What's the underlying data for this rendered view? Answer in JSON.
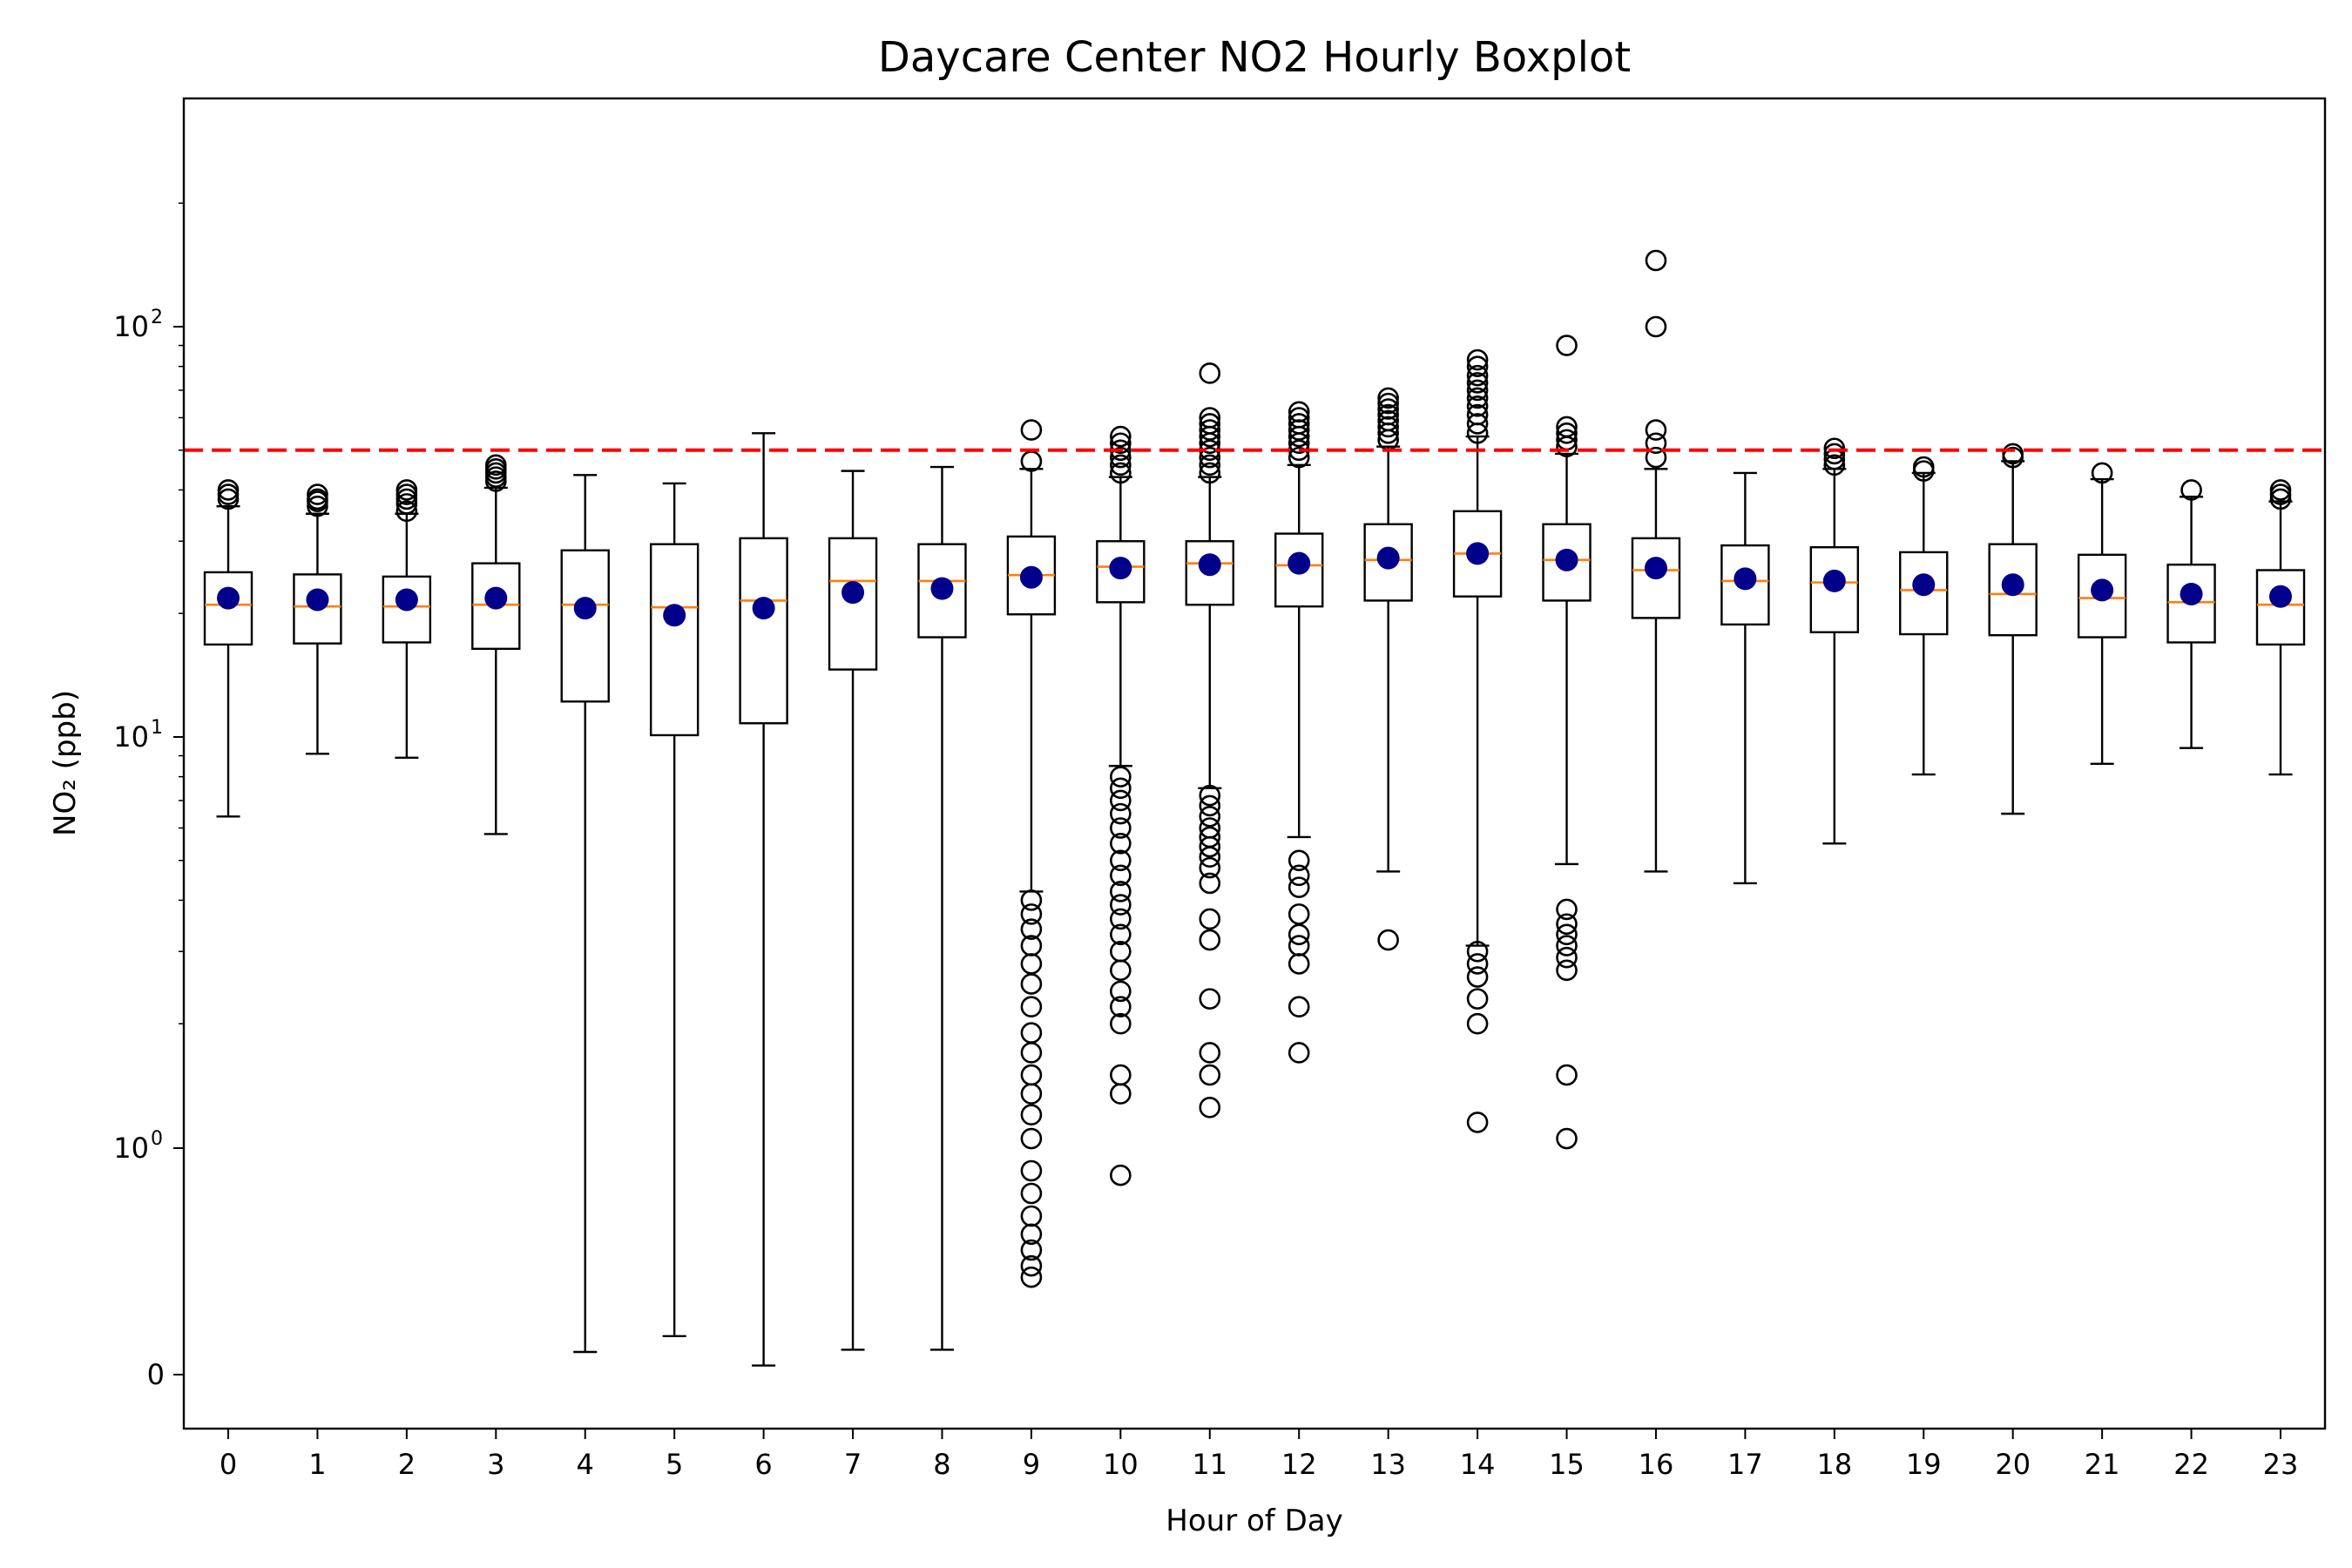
{
  "chart_data": {
    "type": "boxplot",
    "title": "Daycare Center NO2 Hourly Boxplot",
    "xlabel": "Hour of Day",
    "ylabel": "NO₂ (ppb)",
    "yscale": "symlog",
    "ylim": [
      -0.25,
      200
    ],
    "y_ticks": [
      {
        "value": 0,
        "label": "0"
      },
      {
        "value": 1,
        "label": "10",
        "exp": "0"
      },
      {
        "value": 10,
        "label": "10",
        "exp": "1"
      },
      {
        "value": 100,
        "label": "10",
        "exp": "2"
      }
    ],
    "reference_line": {
      "value": 50,
      "color": "#ff0000",
      "style": "dashed"
    },
    "colors": {
      "median": "#ff7f0e",
      "mean": "#00008b",
      "box": "#000000",
      "outlier": "#000000"
    },
    "categories": [
      "0",
      "1",
      "2",
      "3",
      "4",
      "5",
      "6",
      "7",
      "8",
      "9",
      "10",
      "11",
      "12",
      "13",
      "14",
      "15",
      "16",
      "17",
      "18",
      "19",
      "20",
      "21",
      "22",
      "23"
    ],
    "boxes": [
      {
        "hour": 0,
        "whislo": 6.4,
        "q1": 16.8,
        "median": 21.0,
        "q3": 25.2,
        "whishi": 36.5,
        "mean": 21.8,
        "fliers": [
          38,
          39,
          40
        ]
      },
      {
        "hour": 1,
        "whislo": 9.1,
        "q1": 16.9,
        "median": 20.8,
        "q3": 24.9,
        "whishi": 35.0,
        "mean": 21.6,
        "fliers": [
          36.5,
          37.5,
          38,
          39
        ]
      },
      {
        "hour": 2,
        "whislo": 8.9,
        "q1": 17.0,
        "median": 20.8,
        "q3": 24.6,
        "whishi": 35.0,
        "mean": 21.6,
        "fliers": [
          35.5,
          37,
          38,
          39,
          40
        ]
      },
      {
        "hour": 3,
        "whislo": 5.8,
        "q1": 16.4,
        "median": 21.0,
        "q3": 26.5,
        "whishi": 40.5,
        "mean": 21.8,
        "fliers": [
          42,
          43,
          44,
          45,
          46
        ]
      },
      {
        "hour": 4,
        "whislo": 0.1,
        "q1": 12.2,
        "median": 21.0,
        "q3": 28.5,
        "whishi": 43.5,
        "mean": 20.6
      },
      {
        "hour": 5,
        "whislo": 0.17,
        "q1": 10.1,
        "median": 20.7,
        "q3": 29.5,
        "whishi": 41.5,
        "mean": 19.8
      },
      {
        "hour": 6,
        "whislo": 0.04,
        "q1": 10.8,
        "median": 21.5,
        "q3": 30.5,
        "whishi": 55.0,
        "mean": 20.6
      },
      {
        "hour": 7,
        "whislo": 0.11,
        "q1": 14.6,
        "median": 24.0,
        "q3": 30.5,
        "whishi": 44.5,
        "mean": 22.5
      },
      {
        "hour": 8,
        "whislo": 0.11,
        "q1": 17.5,
        "median": 24.0,
        "q3": 29.5,
        "whishi": 45.5,
        "mean": 23.0
      },
      {
        "hour": 9,
        "whislo": 4.2,
        "q1": 19.9,
        "median": 24.8,
        "q3": 30.8,
        "whishi": 45.0,
        "mean": 24.5,
        "fliers": [
          47,
          56,
          4.0,
          3.7,
          3.4,
          3.1,
          2.8,
          2.5,
          2.2,
          1.9,
          1.7,
          1.5,
          1.35,
          1.2,
          1.05,
          0.9,
          0.8,
          0.7,
          0.62,
          0.55,
          0.48,
          0.43
        ]
      },
      {
        "hour": 10,
        "whislo": 8.5,
        "q1": 21.3,
        "median": 26.0,
        "q3": 30.0,
        "whishi": 43.0,
        "mean": 25.8,
        "fliers": [
          44,
          46,
          48,
          50,
          52,
          54,
          8.0,
          7.5,
          7.0,
          6.5,
          6.0,
          5.5,
          5.0,
          4.6,
          4.2,
          3.9,
          3.6,
          3.3,
          3.0,
          2.7,
          2.4,
          2.2,
          2.0,
          1.5,
          1.35,
          0.88
        ]
      },
      {
        "hour": 11,
        "whislo": 7.5,
        "q1": 21.0,
        "median": 26.5,
        "q3": 30.0,
        "whishi": 43.0,
        "mean": 26.3,
        "fliers": [
          44,
          46,
          48,
          50,
          52,
          54,
          56,
          58,
          60,
          77,
          7.2,
          6.8,
          6.4,
          6.0,
          5.7,
          5.4,
          5.1,
          4.8,
          4.4,
          3.6,
          3.2,
          2.3,
          1.7,
          1.5,
          1.25
        ]
      },
      {
        "hour": 12,
        "whislo": 5.7,
        "q1": 20.8,
        "median": 26.2,
        "q3": 31.3,
        "whishi": 46.0,
        "mean": 26.5,
        "fliers": [
          48,
          50,
          52,
          54,
          56,
          58,
          60,
          62,
          5.0,
          4.6,
          4.3,
          3.7,
          3.3,
          3.1,
          2.8,
          2.2,
          1.7
        ]
      },
      {
        "hour": 13,
        "whislo": 4.7,
        "q1": 21.5,
        "median": 27.0,
        "q3": 33.0,
        "whishi": 51.0,
        "mean": 27.3,
        "fliers": [
          53,
          55,
          57,
          59,
          61,
          63,
          65,
          67,
          3.2
        ]
      },
      {
        "hour": 14,
        "whislo": 3.1,
        "q1": 22.0,
        "median": 28.0,
        "q3": 35.5,
        "whishi": 54.0,
        "mean": 28.0,
        "fliers": [
          55,
          58,
          61,
          64,
          67,
          70,
          73,
          76,
          80,
          83,
          3.0,
          2.8,
          2.6,
          2.3,
          2.0,
          1.15
        ]
      },
      {
        "hour": 15,
        "whislo": 4.9,
        "q1": 21.5,
        "median": 27.0,
        "q3": 33.0,
        "whishi": 49.0,
        "mean": 27.0,
        "fliers": [
          51,
          53,
          55,
          57,
          90,
          3.8,
          3.5,
          3.3,
          3.1,
          2.9,
          2.7,
          1.5,
          1.05
        ]
      },
      {
        "hour": 16,
        "whislo": 4.7,
        "q1": 19.5,
        "median": 25.5,
        "q3": 30.5,
        "whishi": 45.0,
        "mean": 25.8,
        "fliers": [
          48,
          52,
          56,
          100,
          145
        ]
      },
      {
        "hour": 17,
        "whislo": 4.4,
        "q1": 18.8,
        "median": 24.0,
        "q3": 29.3,
        "whishi": 44.0,
        "mean": 24.3
      },
      {
        "hour": 18,
        "whislo": 5.5,
        "q1": 18.0,
        "median": 23.8,
        "q3": 29.0,
        "whishi": 45.0,
        "mean": 24.0,
        "fliers": [
          46,
          47.5,
          49,
          50.5
        ]
      },
      {
        "hour": 19,
        "whislo": 8.1,
        "q1": 17.8,
        "median": 22.8,
        "q3": 28.2,
        "whishi": 44.0,
        "mean": 23.5,
        "fliers": [
          44.5,
          45.5
        ]
      },
      {
        "hour": 20,
        "whislo": 6.5,
        "q1": 17.7,
        "median": 22.3,
        "q3": 29.5,
        "whishi": 47.0,
        "mean": 23.5,
        "fliers": [
          48,
          49
        ]
      },
      {
        "hour": 21,
        "whislo": 8.6,
        "q1": 17.5,
        "median": 21.8,
        "q3": 27.8,
        "whishi": 42.5,
        "mean": 22.8,
        "fliers": [
          44
        ]
      },
      {
        "hour": 22,
        "whislo": 9.4,
        "q1": 17.0,
        "median": 21.3,
        "q3": 26.3,
        "whishi": 38.5,
        "mean": 22.3,
        "fliers": [
          40
        ]
      },
      {
        "hour": 23,
        "whislo": 8.1,
        "q1": 16.8,
        "median": 21.0,
        "q3": 25.5,
        "whishi": 37.5,
        "mean": 22.0,
        "fliers": [
          38,
          39,
          40
        ]
      }
    ]
  }
}
